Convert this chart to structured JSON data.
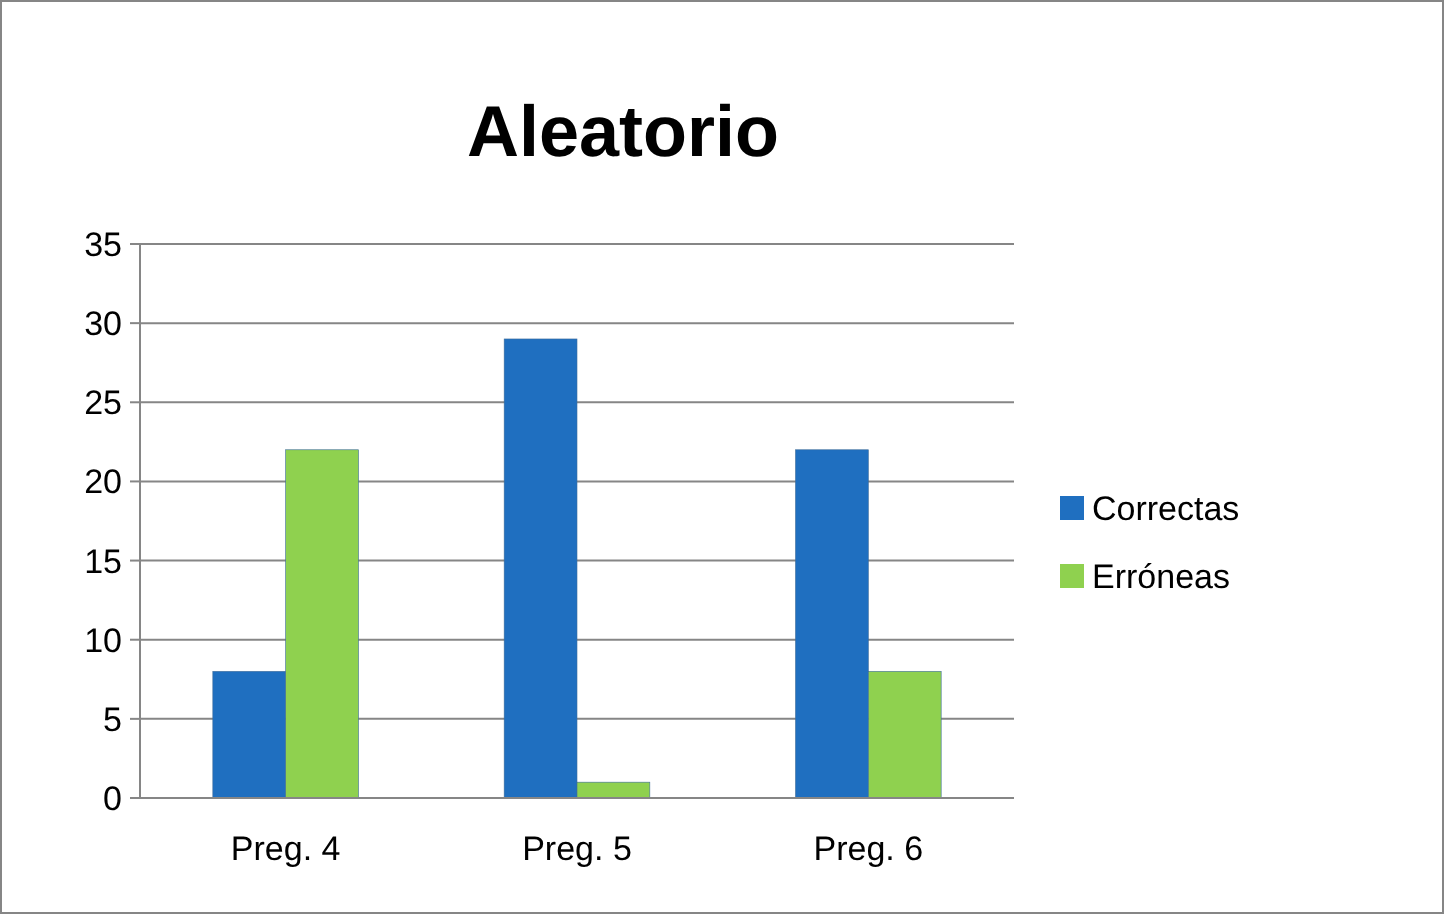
{
  "chart_data": {
    "type": "bar",
    "title": "Aleatorio",
    "categories": [
      "Preg. 4",
      "Preg. 5",
      "Preg. 6"
    ],
    "series": [
      {
        "name": "Correctas",
        "color": "#1f6fc0",
        "values": [
          8,
          29,
          22
        ]
      },
      {
        "name": "Erróneas",
        "color": "#8fd14f",
        "values": [
          22,
          1,
          8
        ]
      }
    ],
    "ylim": [
      0,
      35
    ],
    "yticks": [
      0,
      5,
      10,
      15,
      20,
      25,
      30,
      35
    ],
    "grid": "y",
    "legend": "right"
  }
}
